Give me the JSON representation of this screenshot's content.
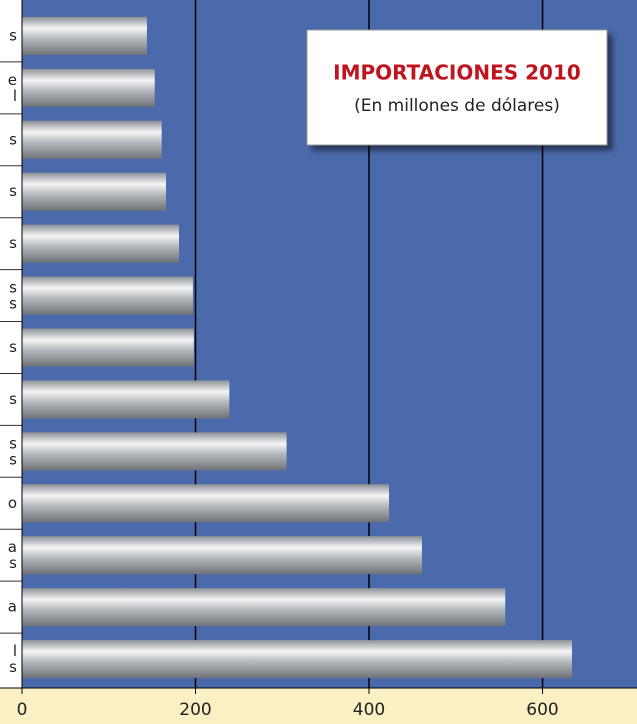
{
  "chart_data": {
    "type": "bar",
    "orientation": "horizontal",
    "title": "IMPORTACIONES 2010",
    "subtitle": "(En millones de dólares)",
    "categories": [
      "s",
      "e\nl",
      "s",
      "s",
      "s",
      "s\ns",
      "s",
      "s",
      "s\ns",
      "o",
      "a\ns",
      "a",
      "l\ns"
    ],
    "values": [
      144,
      153,
      161,
      166,
      181,
      197,
      198,
      239,
      305,
      423,
      461,
      557,
      634
    ],
    "color": "#a9adb2",
    "xlim": [
      0,
      706
    ],
    "xticks": [
      0,
      200,
      400,
      600
    ],
    "grid": true
  }
}
